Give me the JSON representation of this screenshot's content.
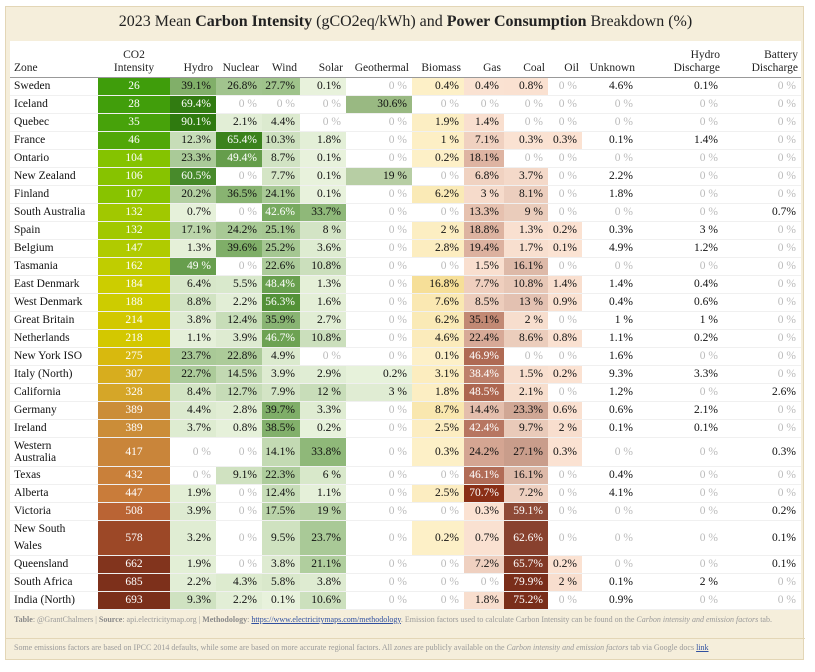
{
  "title": {
    "prefix": "2023 Mean ",
    "bold1": "Carbon Intensity",
    "mid": " (gCO2eq/kWh) and ",
    "bold2": "Power Consumption",
    "suffix": " Breakdown (%)"
  },
  "chart_data": {
    "type": "table",
    "columns": [
      {
        "key": "zone",
        "label": "Zone"
      },
      {
        "key": "ci",
        "label": "CO2\nIntensity"
      },
      {
        "key": "hydro",
        "label": "Hydro"
      },
      {
        "key": "nuclear",
        "label": "Nuclear"
      },
      {
        "key": "wind",
        "label": "Wind"
      },
      {
        "key": "solar",
        "label": "Solar"
      },
      {
        "key": "geothermal",
        "label": "Geothermal"
      },
      {
        "key": "biomass",
        "label": "Biomass"
      },
      {
        "key": "gas",
        "label": "Gas"
      },
      {
        "key": "coal",
        "label": "Coal"
      },
      {
        "key": "oil",
        "label": "Oil"
      },
      {
        "key": "unknown",
        "label": "Unknown"
      },
      {
        "key": "hydro_discharge",
        "label": "Hydro\nDischarge"
      },
      {
        "key": "battery_discharge",
        "label": "Battery\nDischarge"
      }
    ],
    "rows": [
      {
        "zone": "Sweden",
        "ci": 26,
        "hydro": "39.1%",
        "nuclear": "26.8%",
        "wind": "27.7%",
        "solar": "0.1%",
        "geothermal": "0 %",
        "biomass": "0.4%",
        "gas": "0.4%",
        "coal": "0.8%",
        "oil": "0 %",
        "unknown": "4.6%",
        "hydro_discharge": "0.1%",
        "battery_discharge": "0 %"
      },
      {
        "zone": "Iceland",
        "ci": 28,
        "hydro": "69.4%",
        "nuclear": "0 %",
        "wind": "0 %",
        "solar": "0 %",
        "geothermal": "30.6%",
        "biomass": "0 %",
        "gas": "0 %",
        "coal": "0 %",
        "oil": "0 %",
        "unknown": "0 %",
        "hydro_discharge": "0 %",
        "battery_discharge": "0 %"
      },
      {
        "zone": "Quebec",
        "ci": 35,
        "hydro": "90.1%",
        "nuclear": "2.1%",
        "wind": "4.4%",
        "solar": "0 %",
        "geothermal": "0 %",
        "biomass": "1.9%",
        "gas": "1.4%",
        "coal": "0 %",
        "oil": "0 %",
        "unknown": "0 %",
        "hydro_discharge": "0 %",
        "battery_discharge": "0 %"
      },
      {
        "zone": "France",
        "ci": 46,
        "hydro": "12.3%",
        "nuclear": "65.4%",
        "wind": "10.3%",
        "solar": "1.8%",
        "geothermal": "0 %",
        "biomass": "1 %",
        "gas": "7.1%",
        "coal": "0.3%",
        "oil": "0.3%",
        "unknown": "0.1%",
        "hydro_discharge": "1.4%",
        "battery_discharge": "0 %"
      },
      {
        "zone": "Ontario",
        "ci": 104,
        "hydro": "23.3%",
        "nuclear": "49.4%",
        "wind": "8.7%",
        "solar": "0.1%",
        "geothermal": "0 %",
        "biomass": "0.2%",
        "gas": "18.1%",
        "coal": "0 %",
        "oil": "0 %",
        "unknown": "0 %",
        "hydro_discharge": "0 %",
        "battery_discharge": "0 %"
      },
      {
        "zone": "New Zealand",
        "ci": 106,
        "hydro": "60.5%",
        "nuclear": "0 %",
        "wind": "7.7%",
        "solar": "0.1%",
        "geothermal": "19 %",
        "biomass": "0 %",
        "gas": "6.8%",
        "coal": "3.7%",
        "oil": "0 %",
        "unknown": "2.2%",
        "hydro_discharge": "0 %",
        "battery_discharge": "0 %"
      },
      {
        "zone": "Finland",
        "ci": 107,
        "hydro": "20.2%",
        "nuclear": "36.5%",
        "wind": "24.1%",
        "solar": "0.1%",
        "geothermal": "0 %",
        "biomass": "6.2%",
        "gas": "3 %",
        "coal": "8.1%",
        "oil": "0 %",
        "unknown": "1.8%",
        "hydro_discharge": "0 %",
        "battery_discharge": "0 %"
      },
      {
        "zone": "South Australia",
        "ci": 132,
        "hydro": "0.7%",
        "nuclear": "0 %",
        "wind": "42.6%",
        "solar": "33.7%",
        "geothermal": "0 %",
        "biomass": "0 %",
        "gas": "13.3%",
        "coal": "9 %",
        "oil": "0 %",
        "unknown": "0 %",
        "hydro_discharge": "0 %",
        "battery_discharge": "0.7%"
      },
      {
        "zone": "Spain",
        "ci": 132,
        "hydro": "17.1%",
        "nuclear": "24.2%",
        "wind": "25.1%",
        "solar": "8 %",
        "geothermal": "0 %",
        "biomass": "2 %",
        "gas": "18.8%",
        "coal": "1.3%",
        "oil": "0.2%",
        "unknown": "0.3%",
        "hydro_discharge": "3 %",
        "battery_discharge": "0 %"
      },
      {
        "zone": "Belgium",
        "ci": 147,
        "hydro": "1.3%",
        "nuclear": "39.6%",
        "wind": "25.2%",
        "solar": "3.6%",
        "geothermal": "0 %",
        "biomass": "2.8%",
        "gas": "19.4%",
        "coal": "1.7%",
        "oil": "0.1%",
        "unknown": "4.9%",
        "hydro_discharge": "1.2%",
        "battery_discharge": "0 %"
      },
      {
        "zone": "Tasmania",
        "ci": 162,
        "hydro": "49 %",
        "nuclear": "0 %",
        "wind": "22.6%",
        "solar": "10.8%",
        "geothermal": "0 %",
        "biomass": "0 %",
        "gas": "1.5%",
        "coal": "16.1%",
        "oil": "0 %",
        "unknown": "0 %",
        "hydro_discharge": "0 %",
        "battery_discharge": "0 %"
      },
      {
        "zone": "East Denmark",
        "ci": 184,
        "hydro": "6.4%",
        "nuclear": "5.5%",
        "wind": "48.4%",
        "solar": "1.3%",
        "geothermal": "0 %",
        "biomass": "16.8%",
        "gas": "7.7%",
        "coal": "10.8%",
        "oil": "1.4%",
        "unknown": "1.4%",
        "hydro_discharge": "0.4%",
        "battery_discharge": "0 %"
      },
      {
        "zone": "West Denmark",
        "ci": 188,
        "hydro": "8.8%",
        "nuclear": "2.2%",
        "wind": "56.3%",
        "solar": "1.6%",
        "geothermal": "0 %",
        "biomass": "7.6%",
        "gas": "8.5%",
        "coal": "13 %",
        "oil": "0.9%",
        "unknown": "0.4%",
        "hydro_discharge": "0.6%",
        "battery_discharge": "0 %"
      },
      {
        "zone": "Great Britain",
        "ci": 214,
        "hydro": "3.8%",
        "nuclear": "12.4%",
        "wind": "35.9%",
        "solar": "2.7%",
        "geothermal": "0 %",
        "biomass": "6.2%",
        "gas": "35.1%",
        "coal": "2 %",
        "oil": "0 %",
        "unknown": "1 %",
        "hydro_discharge": "1 %",
        "battery_discharge": "0 %"
      },
      {
        "zone": "Netherlands",
        "ci": 218,
        "hydro": "1.1%",
        "nuclear": "3.9%",
        "wind": "46.7%",
        "solar": "10.8%",
        "geothermal": "0 %",
        "biomass": "4.6%",
        "gas": "22.4%",
        "coal": "8.6%",
        "oil": "0.8%",
        "unknown": "1.1%",
        "hydro_discharge": "0.2%",
        "battery_discharge": "0 %"
      },
      {
        "zone": "New York ISO",
        "ci": 275,
        "hydro": "23.7%",
        "nuclear": "22.8%",
        "wind": "4.9%",
        "solar": "0 %",
        "geothermal": "0 %",
        "biomass": "0.1%",
        "gas": "46.9%",
        "coal": "0 %",
        "oil": "0 %",
        "unknown": "1.6%",
        "hydro_discharge": "0 %",
        "battery_discharge": "0 %"
      },
      {
        "zone": "Italy (North)",
        "ci": 307,
        "hydro": "22.7%",
        "nuclear": "14.5%",
        "wind": "3.9%",
        "solar": "2.9%",
        "geothermal": "0.2%",
        "biomass": "3.1%",
        "gas": "38.4%",
        "coal": "1.5%",
        "oil": "0.2%",
        "unknown": "9.3%",
        "hydro_discharge": "3.3%",
        "battery_discharge": "0 %"
      },
      {
        "zone": "California",
        "ci": 328,
        "hydro": "8.4%",
        "nuclear": "12.7%",
        "wind": "7.9%",
        "solar": "12 %",
        "geothermal": "3 %",
        "biomass": "1.8%",
        "gas": "48.5%",
        "coal": "2.1%",
        "oil": "0 %",
        "unknown": "1.2%",
        "hydro_discharge": "0 %",
        "battery_discharge": "2.6%"
      },
      {
        "zone": "Germany",
        "ci": 389,
        "hydro": "4.4%",
        "nuclear": "2.8%",
        "wind": "39.7%",
        "solar": "3.3%",
        "geothermal": "0 %",
        "biomass": "8.7%",
        "gas": "14.4%",
        "coal": "23.3%",
        "oil": "0.6%",
        "unknown": "0.6%",
        "hydro_discharge": "2.1%",
        "battery_discharge": "0 %"
      },
      {
        "zone": "Ireland",
        "ci": 389,
        "hydro": "3.7%",
        "nuclear": "0.8%",
        "wind": "38.5%",
        "solar": "0.2%",
        "geothermal": "0 %",
        "biomass": "2.5%",
        "gas": "42.4%",
        "coal": "9.7%",
        "oil": "2 %",
        "unknown": "0.1%",
        "hydro_discharge": "0.1%",
        "battery_discharge": "0 %"
      },
      {
        "zone": "Western Australia",
        "ci": 417,
        "hydro": "0 %",
        "nuclear": "0 %",
        "wind": "14.1%",
        "solar": "33.8%",
        "geothermal": "0 %",
        "biomass": "0.3%",
        "gas": "24.2%",
        "coal": "27.1%",
        "oil": "0.3%",
        "unknown": "0 %",
        "hydro_discharge": "0 %",
        "battery_discharge": "0.3%"
      },
      {
        "zone": "Texas",
        "ci": 432,
        "hydro": "0 %",
        "nuclear": "9.1%",
        "wind": "22.3%",
        "solar": "6 %",
        "geothermal": "0 %",
        "biomass": "0 %",
        "gas": "46.1%",
        "coal": "16.1%",
        "oil": "0 %",
        "unknown": "0.4%",
        "hydro_discharge": "0 %",
        "battery_discharge": "0 %"
      },
      {
        "zone": "Alberta",
        "ci": 447,
        "hydro": "1.9%",
        "nuclear": "0 %",
        "wind": "12.4%",
        "solar": "1.1%",
        "geothermal": "0 %",
        "biomass": "2.5%",
        "gas": "70.7%",
        "coal": "7.2%",
        "oil": "0 %",
        "unknown": "4.1%",
        "hydro_discharge": "0 %",
        "battery_discharge": "0 %"
      },
      {
        "zone": "Victoria",
        "ci": 508,
        "hydro": "3.9%",
        "nuclear": "0 %",
        "wind": "17.5%",
        "solar": "19 %",
        "geothermal": "0 %",
        "biomass": "0 %",
        "gas": "0.3%",
        "coal": "59.1%",
        "oil": "0 %",
        "unknown": "0 %",
        "hydro_discharge": "0 %",
        "battery_discharge": "0.2%"
      },
      {
        "zone": "New South Wales",
        "ci": 578,
        "hydro": "3.2%",
        "nuclear": "0 %",
        "wind": "9.5%",
        "solar": "23.7%",
        "geothermal": "0 %",
        "biomass": "0.2%",
        "gas": "0.7%",
        "coal": "62.6%",
        "oil": "0 %",
        "unknown": "0 %",
        "hydro_discharge": "0 %",
        "battery_discharge": "0.1%"
      },
      {
        "zone": "Queensland",
        "ci": 662,
        "hydro": "1.9%",
        "nuclear": "0 %",
        "wind": "3.8%",
        "solar": "21.1%",
        "geothermal": "0 %",
        "biomass": "0 %",
        "gas": "7.2%",
        "coal": "65.7%",
        "oil": "0.2%",
        "unknown": "0 %",
        "hydro_discharge": "0 %",
        "battery_discharge": "0.1%"
      },
      {
        "zone": "South Africa",
        "ci": 685,
        "hydro": "2.2%",
        "nuclear": "4.3%",
        "wind": "5.8%",
        "solar": "3.8%",
        "geothermal": "0 %",
        "biomass": "0 %",
        "gas": "0 %",
        "coal": "79.9%",
        "oil": "2 %",
        "unknown": "0.1%",
        "hydro_discharge": "2 %",
        "battery_discharge": "0 %"
      },
      {
        "zone": "India (North)",
        "ci": 693,
        "hydro": "9.3%",
        "nuclear": "2.2%",
        "wind": "0.1%",
        "solar": "10.6%",
        "geothermal": "0 %",
        "biomass": "0 %",
        "gas": "1.8%",
        "coal": "75.2%",
        "oil": "0 %",
        "unknown": "0.9%",
        "hydro_discharge": "0 %",
        "battery_discharge": "0 %"
      }
    ]
  },
  "footer": {
    "line1_table_label": "Table",
    "line1_author": ": @GrantChalmers | ",
    "line1_source_label": "Source",
    "line1_source": ": api.electricitymap.org | ",
    "line1_method_label": "Methodology",
    "line1_colon": ": ",
    "line1_link": "https://www.electricitymaps.com/methodology",
    "line1_rest": ". Emission factors used to calculate Carbon Intensity can be found on the ",
    "line1_tab_ital": "Carbon intensity and emission factors",
    "line1_end": " tab.",
    "line2_start": "Some emissions factors are based on IPCC 2014 defaults, while some are based on more accurate regional factors. All ",
    "line2_zones": "zones",
    "line2_mid": " are publicly available on the ",
    "line2_tab": "Carbon intensity and emission factors",
    "line2_end": " tab via Google docs ",
    "line2_link": "link"
  },
  "colors": {
    "ci_scale": [
      "#3a9a0c",
      "#7cc100",
      "#c9cf00",
      "#d9c300",
      "#d6a826",
      "#c98a3a",
      "#c9753a",
      "#a8502c",
      "#8a3a1f",
      "#7a2e1a"
    ],
    "green_scale": [
      "#e8f2dc",
      "#2f7a0f"
    ],
    "geo_scale": [
      "#e8f2dc",
      "#336f0f"
    ],
    "biomass_scale": [
      "#fdf0c8",
      "#e0a800"
    ],
    "gas_scale": [
      "#fbe3d3",
      "#8a2f16"
    ],
    "coal_scale": [
      "#fbe3d3",
      "#7a2e1a"
    ]
  }
}
